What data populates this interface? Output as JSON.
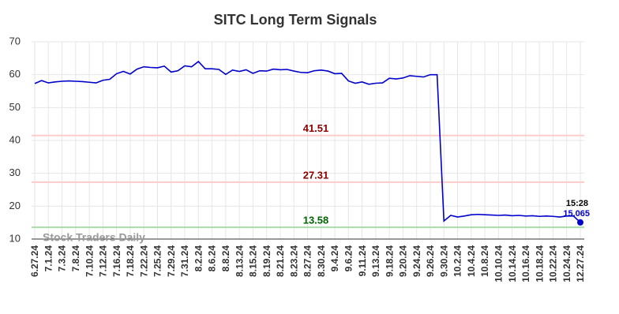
{
  "chart_data": {
    "type": "line",
    "title": "SITC Long Term Signals",
    "watermark": "Stock Traders Daily",
    "categories": [
      "6.27.24",
      null,
      "7.1.24",
      null,
      "7.3.24",
      null,
      "7.8.24",
      null,
      "7.10.24",
      null,
      "7.12.24",
      null,
      "7.16.24",
      null,
      "7.18.24",
      null,
      "7.22.24",
      null,
      "7.25.24",
      null,
      "7.29.24",
      null,
      "7.31.24",
      null,
      "8.2.24",
      null,
      "8.6.24",
      null,
      "8.8.24",
      null,
      "8.13.24",
      null,
      "8.15.24",
      null,
      "8.19.24",
      null,
      "8.21.24",
      null,
      "8.23.24",
      null,
      "8.27.24",
      null,
      "8.30.24",
      null,
      "9.4.24",
      null,
      "9.6.24",
      null,
      "9.11.24",
      null,
      "9.13.24",
      null,
      "9.18.24",
      null,
      "9.20.24",
      null,
      "9.24.24",
      null,
      "9.26.24",
      null,
      "9.30.24",
      null,
      "10.2.24",
      null,
      "10.4.24",
      null,
      "10.8.24",
      null,
      "10.10.24",
      null,
      "10.14.24",
      null,
      "10.16.24",
      null,
      "10.18.24",
      null,
      "10.22.24",
      null,
      "10.24.24",
      null,
      "12.27.24"
    ],
    "series": [
      {
        "color": "#0000cc",
        "values": [
          57.3,
          58.2,
          57.5,
          57.8,
          58,
          58.1,
          58,
          57.9,
          57.7,
          57.5,
          58.3,
          58.6,
          60.3,
          61,
          60.2,
          61.7,
          62.4,
          62.2,
          62.1,
          62.6,
          60.8,
          61.2,
          62.7,
          62.4,
          64,
          61.8,
          61.8,
          61.6,
          60.1,
          61.4,
          61,
          61.5,
          60.4,
          61.2,
          61.1,
          61.7,
          61.5,
          61.6,
          61.1,
          60.7,
          60.6,
          61.2,
          61.4,
          61.1,
          60.3,
          60.4,
          58.1,
          57.4,
          57.8,
          57.1,
          57.4,
          57.5,
          58.9,
          58.7,
          59,
          59.7,
          59.5,
          59.3,
          60,
          60,
          15.5,
          17.2,
          16.7,
          17,
          17.4,
          17.5,
          17.4,
          17.3,
          17.2,
          17.3,
          17.1,
          17.2,
          17,
          17.1,
          16.9,
          17,
          16.9,
          16.7,
          17,
          17,
          15.065
        ]
      }
    ],
    "last_time": "15:28",
    "hlines": [
      {
        "value": 41.51,
        "color": "#ffcccc",
        "label_color": "#8b0000"
      },
      {
        "value": 27.31,
        "color": "#ffcccc",
        "label_color": "#8b0000"
      },
      {
        "value": 13.58,
        "color": "#aaddaa",
        "label_color": "#006400"
      }
    ],
    "ylim": [
      10,
      70
    ],
    "yticks": [
      10,
      20,
      30,
      40,
      50,
      60,
      70
    ],
    "grid": true
  }
}
